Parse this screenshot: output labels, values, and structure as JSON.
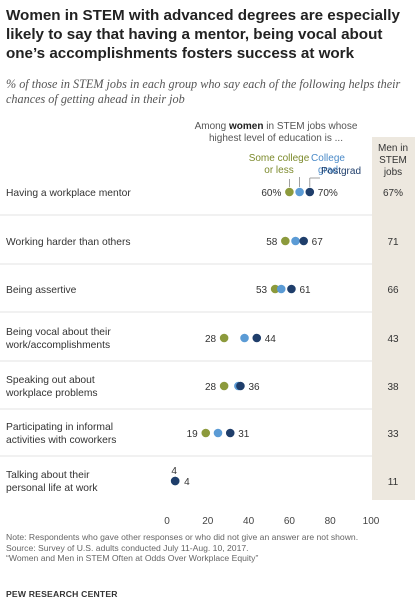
{
  "title": "Women in STEM with advanced degrees are especially likely to say that having a mentor, being vocal about one’s accomplishments fosters success at work",
  "subtitle": "% of those in STEM jobs in each group who say each of the following helps their chances of getting ahead in their job",
  "colors": {
    "some_college": "#8c9a3c",
    "college_grad": "#5b9bd5",
    "postgrad": "#1f3e6b",
    "men_column_bg": "#ede8df",
    "text_some_college": "#7c8a2c",
    "text_college_grad": "#4a8ac8",
    "text_postgrad": "#1f3e6b"
  },
  "chart_data": {
    "type": "dot",
    "header_line1_prefix": "Among ",
    "header_line1_emph": "women",
    "header_line1_suffix": " in STEM jobs whose",
    "header_line2": "highest level of education is ...",
    "series": [
      {
        "name": "Some college or less",
        "label_lines": [
          "Some college",
          "or less"
        ],
        "values": [
          60,
          58,
          53,
          28,
          28,
          19,
          4
        ]
      },
      {
        "name": "College grad",
        "label_lines": [
          "College",
          "grad"
        ],
        "values": [
          65,
          63,
          56,
          38,
          35,
          25,
          4
        ]
      },
      {
        "name": "Postgrad",
        "label_lines": [
          "Postgrad"
        ],
        "values": [
          70,
          67,
          61,
          44,
          36,
          31,
          4
        ]
      }
    ],
    "men_label_lines": [
      "Men in",
      "STEM",
      "jobs"
    ],
    "men_values": [
      "67%",
      "71",
      "66",
      "43",
      "38",
      "33",
      "11"
    ],
    "categories": [
      {
        "lines": [
          "Having a workplace mentor"
        ],
        "low_label": "60%",
        "high_label": "70%"
      },
      {
        "lines": [
          "Working harder than others"
        ],
        "low_label": "58",
        "high_label": "67"
      },
      {
        "lines": [
          "Being assertive"
        ],
        "low_label": "53",
        "high_label": "61"
      },
      {
        "lines": [
          "Being vocal about their",
          "work/accomplishments"
        ],
        "low_label": "28",
        "high_label": "44"
      },
      {
        "lines": [
          "Speaking out about",
          "workplace problems"
        ],
        "low_label": "28",
        "high_label": "36"
      },
      {
        "lines": [
          "Participating in informal",
          "activities with coworkers"
        ],
        "low_label": "19",
        "high_label": "31"
      },
      {
        "lines": [
          "Talking about their",
          "personal life at work"
        ],
        "low_label": "4",
        "high_label": "4"
      }
    ],
    "xlim": [
      0,
      100
    ],
    "xticks": [
      0,
      20,
      40,
      60,
      80,
      100
    ],
    "grid": false
  },
  "footer": {
    "note": "Note: Respondents who gave other responses or who did not give an answer are not shown.",
    "source": "Source: Survey of U.S. adults conducted July 11-Aug. 10, 2017.",
    "report": "“Women and Men in STEM Often at Odds Over Workplace Equity”",
    "brand": "PEW RESEARCH CENTER"
  }
}
